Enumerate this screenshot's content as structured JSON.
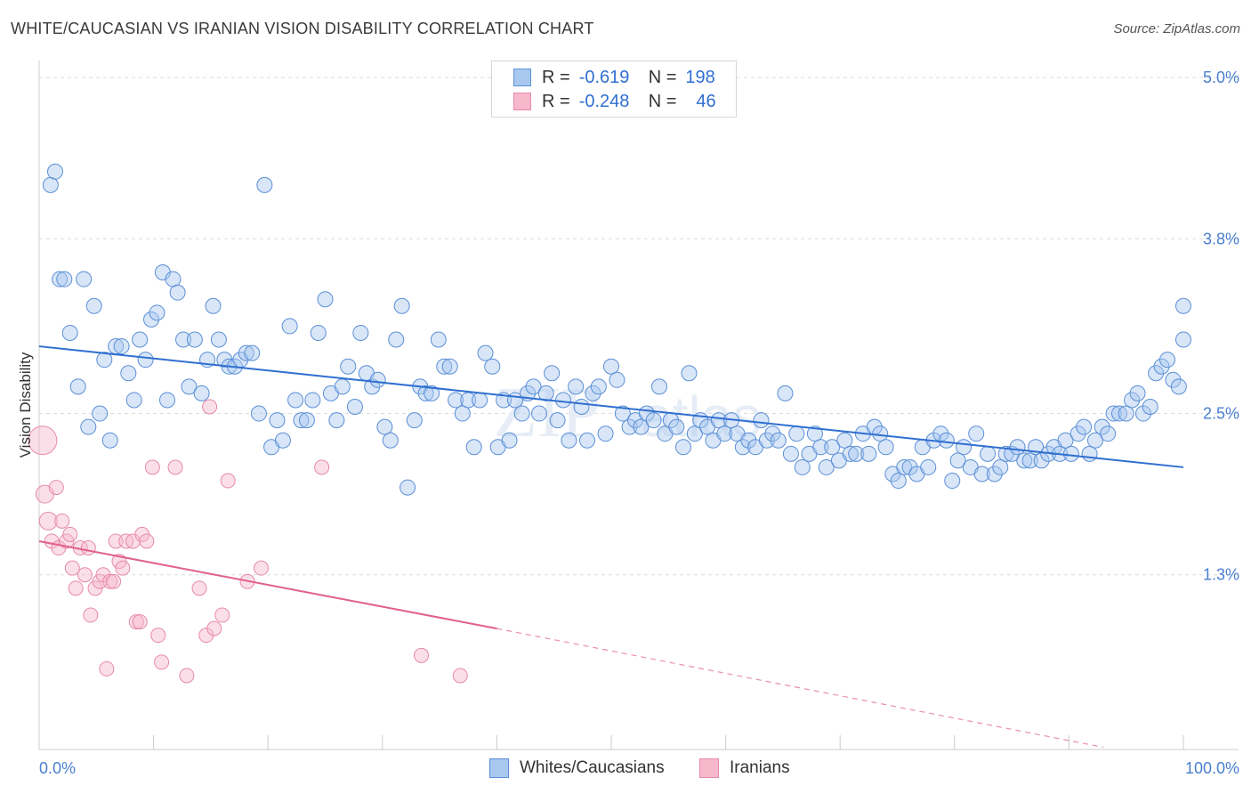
{
  "header": {
    "title": "WHITE/CAUCASIAN VS IRANIAN VISION DISABILITY CORRELATION CHART",
    "source": "Source: ZipAtlas.com"
  },
  "legend": {
    "r_label": "R =",
    "n_label": "N =",
    "rows": [
      {
        "r": "-0.619",
        "n": "198"
      },
      {
        "r": "-0.248",
        "n": "46"
      }
    ]
  },
  "bottom_legend": [
    "Whites/Caucasians",
    "Iranians"
  ],
  "colors": {
    "blue_fill": "#a8c8f0",
    "blue_stroke": "#5b8fd6",
    "blue_line": "#2f6fd0",
    "pink_fill": "#f7b8cc",
    "pink_stroke": "#e68aa7",
    "pink_line": "#e0608a",
    "tick_text": "#4a7fd0",
    "grid": "#dcdcdc"
  },
  "chart_data": {
    "type": "scatter",
    "title": "WHITE/CAUCASIAN VS IRANIAN VISION DISABILITY CORRELATION CHART",
    "xlabel": "",
    "ylabel": "Vision Disability",
    "xlim": [
      0,
      100
    ],
    "ylim": [
      0,
      5.1
    ],
    "x_tick_labels": [
      "0.0%",
      "100.0%"
    ],
    "y_ticks": [
      1.3,
      2.5,
      3.8,
      5.0
    ],
    "y_tick_labels": [
      "1.3%",
      "2.5%",
      "3.8%",
      "5.0%"
    ],
    "grid": true,
    "legend_position": "top-center",
    "series": [
      {
        "name": "Whites/Caucasians",
        "r": -0.619,
        "n": 198,
        "trend": {
          "x": [
            0,
            100
          ],
          "y": [
            3.0,
            2.1
          ]
        },
        "points": [
          [
            1,
            4.2
          ],
          [
            1.4,
            4.3
          ],
          [
            1.8,
            3.5
          ],
          [
            2.2,
            3.5
          ],
          [
            2.7,
            3.1
          ],
          [
            3.4,
            2.7
          ],
          [
            3.9,
            3.5
          ],
          [
            4.3,
            2.4
          ],
          [
            4.8,
            3.3
          ],
          [
            5.3,
            2.5
          ],
          [
            5.7,
            2.9
          ],
          [
            6.2,
            2.3
          ],
          [
            6.7,
            3.0
          ],
          [
            7.2,
            3.0
          ],
          [
            7.8,
            2.8
          ],
          [
            8.3,
            2.6
          ],
          [
            8.8,
            3.05
          ],
          [
            9.3,
            2.9
          ],
          [
            9.8,
            3.2
          ],
          [
            10.3,
            3.25
          ],
          [
            10.8,
            3.55
          ],
          [
            11.2,
            2.6
          ],
          [
            11.7,
            3.5
          ],
          [
            12.1,
            3.4
          ],
          [
            12.6,
            3.05
          ],
          [
            13.1,
            2.7
          ],
          [
            13.6,
            3.05
          ],
          [
            14.2,
            2.65
          ],
          [
            14.7,
            2.9
          ],
          [
            15.2,
            3.3
          ],
          [
            15.7,
            3.05
          ],
          [
            16.2,
            2.9
          ],
          [
            16.6,
            2.85
          ],
          [
            17.1,
            2.85
          ],
          [
            17.6,
            2.9
          ],
          [
            18.1,
            2.95
          ],
          [
            18.6,
            2.95
          ],
          [
            19.2,
            2.5
          ],
          [
            19.7,
            4.2
          ],
          [
            20.3,
            2.25
          ],
          [
            20.8,
            2.45
          ],
          [
            21.3,
            2.3
          ],
          [
            21.9,
            3.15
          ],
          [
            22.4,
            2.6
          ],
          [
            22.9,
            2.45
          ],
          [
            23.4,
            2.45
          ],
          [
            23.9,
            2.6
          ],
          [
            24.4,
            3.1
          ],
          [
            25.0,
            3.35
          ],
          [
            25.5,
            2.65
          ],
          [
            26.0,
            2.45
          ],
          [
            26.5,
            2.7
          ],
          [
            27.0,
            2.85
          ],
          [
            27.6,
            2.55
          ],
          [
            28.1,
            3.1
          ],
          [
            28.6,
            2.8
          ],
          [
            29.1,
            2.7
          ],
          [
            29.6,
            2.75
          ],
          [
            30.2,
            2.4
          ],
          [
            30.7,
            2.3
          ],
          [
            31.2,
            3.05
          ],
          [
            31.7,
            3.3
          ],
          [
            32.2,
            1.95
          ],
          [
            32.8,
            2.45
          ],
          [
            33.3,
            2.7
          ],
          [
            33.8,
            2.65
          ],
          [
            34.3,
            2.65
          ],
          [
            34.9,
            3.05
          ],
          [
            35.4,
            2.85
          ],
          [
            35.9,
            2.85
          ],
          [
            36.4,
            2.6
          ],
          [
            37.0,
            2.5
          ],
          [
            37.5,
            2.6
          ],
          [
            38.0,
            2.25
          ],
          [
            38.5,
            2.6
          ],
          [
            39.0,
            2.95
          ],
          [
            39.6,
            2.85
          ],
          [
            40.1,
            2.25
          ],
          [
            40.6,
            2.6
          ],
          [
            41.1,
            2.3
          ],
          [
            41.6,
            2.6
          ],
          [
            42.2,
            2.5
          ],
          [
            42.7,
            2.65
          ],
          [
            43.2,
            2.7
          ],
          [
            43.7,
            2.5
          ],
          [
            44.3,
            2.65
          ],
          [
            44.8,
            2.8
          ],
          [
            45.3,
            2.45
          ],
          [
            45.8,
            2.6
          ],
          [
            46.3,
            2.3
          ],
          [
            46.9,
            2.7
          ],
          [
            47.4,
            2.55
          ],
          [
            47.9,
            2.3
          ],
          [
            48.4,
            2.65
          ],
          [
            48.9,
            2.7
          ],
          [
            49.5,
            2.35
          ],
          [
            50.0,
            2.85
          ],
          [
            50.5,
            2.75
          ],
          [
            51.0,
            2.5
          ],
          [
            51.6,
            2.4
          ],
          [
            52.1,
            2.45
          ],
          [
            52.6,
            2.4
          ],
          [
            53.1,
            2.5
          ],
          [
            53.7,
            2.45
          ],
          [
            54.2,
            2.7
          ],
          [
            54.7,
            2.35
          ],
          [
            55.2,
            2.45
          ],
          [
            55.7,
            2.4
          ],
          [
            56.3,
            2.25
          ],
          [
            56.8,
            2.8
          ],
          [
            57.3,
            2.35
          ],
          [
            57.8,
            2.45
          ],
          [
            58.4,
            2.4
          ],
          [
            58.9,
            2.3
          ],
          [
            59.4,
            2.45
          ],
          [
            59.9,
            2.35
          ],
          [
            60.5,
            2.45
          ],
          [
            61.0,
            2.35
          ],
          [
            61.5,
            2.25
          ],
          [
            62.0,
            2.3
          ],
          [
            62.6,
            2.25
          ],
          [
            63.1,
            2.45
          ],
          [
            63.6,
            2.3
          ],
          [
            64.1,
            2.35
          ],
          [
            64.6,
            2.3
          ],
          [
            65.2,
            2.65
          ],
          [
            65.7,
            2.2
          ],
          [
            66.2,
            2.35
          ],
          [
            66.7,
            2.1
          ],
          [
            67.3,
            2.2
          ],
          [
            67.8,
            2.35
          ],
          [
            68.3,
            2.25
          ],
          [
            68.8,
            2.1
          ],
          [
            69.3,
            2.25
          ],
          [
            69.9,
            2.15
          ],
          [
            70.4,
            2.3
          ],
          [
            70.9,
            2.2
          ],
          [
            71.4,
            2.2
          ],
          [
            72.0,
            2.35
          ],
          [
            72.5,
            2.2
          ],
          [
            73.0,
            2.4
          ],
          [
            73.5,
            2.35
          ],
          [
            74.0,
            2.25
          ],
          [
            74.6,
            2.05
          ],
          [
            75.1,
            2.0
          ],
          [
            75.6,
            2.1
          ],
          [
            76.1,
            2.1
          ],
          [
            76.7,
            2.05
          ],
          [
            77.2,
            2.25
          ],
          [
            77.7,
            2.1
          ],
          [
            78.2,
            2.3
          ],
          [
            78.8,
            2.35
          ],
          [
            79.3,
            2.3
          ],
          [
            79.8,
            2.0
          ],
          [
            80.3,
            2.15
          ],
          [
            80.8,
            2.25
          ],
          [
            81.4,
            2.1
          ],
          [
            81.9,
            2.35
          ],
          [
            82.4,
            2.05
          ],
          [
            82.9,
            2.2
          ],
          [
            83.5,
            2.05
          ],
          [
            84.0,
            2.1
          ],
          [
            84.5,
            2.2
          ],
          [
            85.0,
            2.2
          ],
          [
            85.5,
            2.25
          ],
          [
            86.1,
            2.15
          ],
          [
            86.6,
            2.15
          ],
          [
            87.1,
            2.25
          ],
          [
            87.6,
            2.15
          ],
          [
            88.2,
            2.2
          ],
          [
            88.7,
            2.25
          ],
          [
            89.2,
            2.2
          ],
          [
            89.7,
            2.3
          ],
          [
            90.2,
            2.2
          ],
          [
            90.8,
            2.35
          ],
          [
            91.3,
            2.4
          ],
          [
            91.8,
            2.2
          ],
          [
            92.3,
            2.3
          ],
          [
            92.9,
            2.4
          ],
          [
            93.4,
            2.35
          ],
          [
            93.9,
            2.5
          ],
          [
            94.4,
            2.5
          ],
          [
            95.0,
            2.5
          ],
          [
            95.5,
            2.6
          ],
          [
            96.0,
            2.65
          ],
          [
            96.5,
            2.5
          ],
          [
            97.1,
            2.55
          ],
          [
            97.6,
            2.8
          ],
          [
            98.1,
            2.85
          ],
          [
            98.6,
            2.9
          ],
          [
            99.1,
            2.75
          ],
          [
            99.6,
            2.7
          ],
          [
            100.0,
            3.05
          ],
          [
            100.0,
            3.3
          ]
        ]
      },
      {
        "name": "Iranians",
        "r": -0.248,
        "n": 46,
        "trend": {
          "x": [
            0,
            40
          ],
          "y": [
            1.55,
            0.9
          ]
        },
        "trend_extended": {
          "x": [
            40,
            100
          ],
          "y": [
            0.9,
            -0.1
          ]
        },
        "points": [
          [
            0.3,
            2.3
          ],
          [
            0.5,
            1.9
          ],
          [
            0.8,
            1.7
          ],
          [
            1.1,
            1.55
          ],
          [
            1.5,
            1.95
          ],
          [
            1.7,
            1.5
          ],
          [
            2.0,
            1.7
          ],
          [
            2.4,
            1.55
          ],
          [
            2.7,
            1.6
          ],
          [
            2.9,
            1.35
          ],
          [
            3.2,
            1.2
          ],
          [
            3.6,
            1.5
          ],
          [
            4.0,
            1.3
          ],
          [
            4.3,
            1.5
          ],
          [
            4.5,
            1.0
          ],
          [
            4.9,
            1.2
          ],
          [
            5.3,
            1.25
          ],
          [
            5.6,
            1.3
          ],
          [
            5.9,
            0.6
          ],
          [
            6.2,
            1.25
          ],
          [
            6.5,
            1.25
          ],
          [
            6.7,
            1.55
          ],
          [
            7.0,
            1.4
          ],
          [
            7.3,
            1.35
          ],
          [
            7.6,
            1.55
          ],
          [
            8.2,
            1.55
          ],
          [
            8.5,
            0.95
          ],
          [
            8.8,
            0.95
          ],
          [
            9.0,
            1.6
          ],
          [
            9.4,
            1.55
          ],
          [
            9.9,
            2.1
          ],
          [
            10.4,
            0.85
          ],
          [
            10.7,
            0.65
          ],
          [
            11.9,
            2.1
          ],
          [
            12.9,
            0.55
          ],
          [
            14.0,
            1.2
          ],
          [
            14.6,
            0.85
          ],
          [
            14.9,
            2.55
          ],
          [
            15.3,
            0.9
          ],
          [
            16.0,
            1.0
          ],
          [
            16.5,
            2.0
          ],
          [
            18.2,
            1.25
          ],
          [
            19.4,
            1.35
          ],
          [
            24.7,
            2.1
          ],
          [
            33.4,
            0.7
          ],
          [
            36.8,
            0.55
          ]
        ]
      }
    ]
  }
}
